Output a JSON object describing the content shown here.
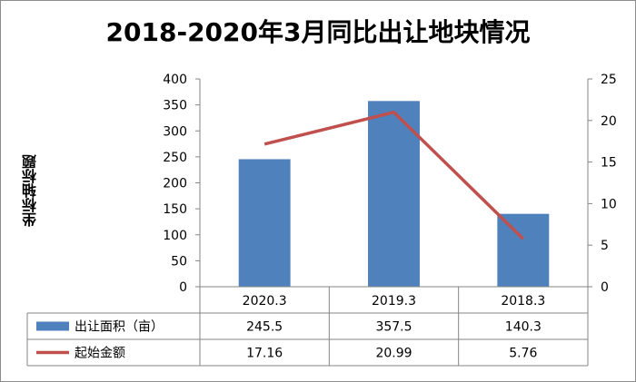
{
  "chart_data": {
    "type": "bar",
    "title": "2018-2020年3月同比出让地块情况",
    "ylabel": "坐标轴标题",
    "categories": [
      "2020.3",
      "2019.3",
      "2018.3"
    ],
    "series": [
      {
        "name": "出让面积（亩）",
        "type": "bar",
        "axis": "left",
        "values": [
          245.5,
          357.5,
          140.3
        ],
        "labels": [
          "245.5",
          "357.5",
          "140.3"
        ],
        "color": "#4f81bd"
      },
      {
        "name": "起始金额",
        "type": "line",
        "axis": "right",
        "values": [
          17.16,
          20.99,
          5.76
        ],
        "labels": [
          "17.16",
          "20.99",
          "5.76"
        ],
        "color": "#c0504d"
      }
    ],
    "ylim_left": [
      0,
      400
    ],
    "ylim_right": [
      0,
      25
    ],
    "yticks_left": [
      "0",
      "50",
      "100",
      "150",
      "200",
      "250",
      "300",
      "350",
      "400"
    ],
    "yticks_right": [
      "0",
      "5",
      "10",
      "15",
      "20",
      "25"
    ],
    "grid": false,
    "legend": "data-table"
  }
}
